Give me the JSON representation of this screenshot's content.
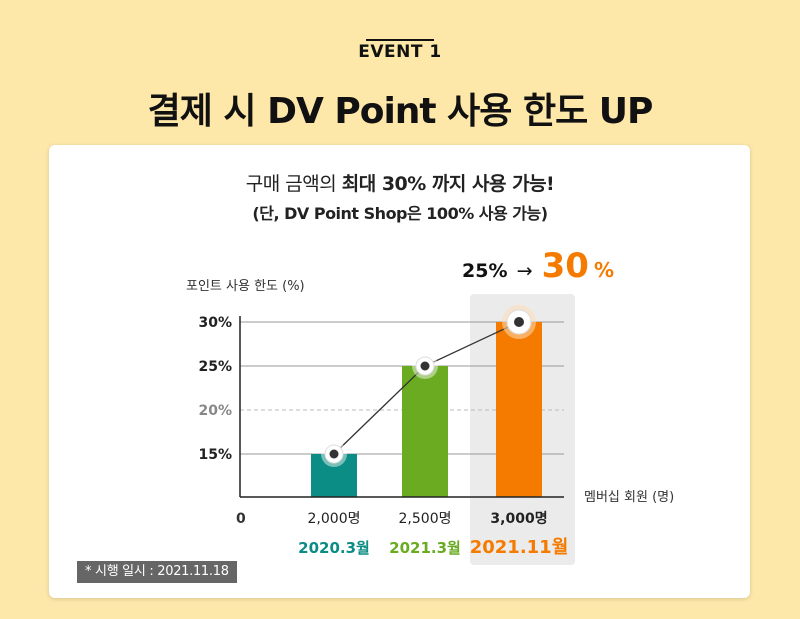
{
  "header": {
    "event_label": "EVENT 1",
    "headline": "결제 시 DV Point 사용 한도 UP"
  },
  "card": {
    "line1_prefix": "구매 금액의 ",
    "line1_bold": "최대 30% 까지 사용 가능!",
    "line2": "(단, DV Point Shop은 100% 사용 가능)",
    "note": "* 시행 일시 : 2021.11.18"
  },
  "highlight": {
    "from": "25%",
    "arrow": "→",
    "to_num": "30",
    "to_unit": "%"
  },
  "colors": {
    "teal": "#0b8c84",
    "green": "#6aab22",
    "orange": "#f47b00",
    "highlight_bg": "#ebebeb"
  },
  "chart_data": {
    "type": "bar",
    "ylabel": "포인트 사용 한도 (%)",
    "xlabel": "멤버십 회원 (명)",
    "origin_label": "0",
    "y_ticks": [
      "15%",
      "20%",
      "25%",
      "30%"
    ],
    "y_tick_values": [
      15,
      20,
      25,
      30
    ],
    "dashed_tick": 20,
    "ylim": [
      10,
      30
    ],
    "categories": [
      "2,000명",
      "2,500명",
      "3,000명"
    ],
    "dates": [
      "2020.3월",
      "2021.3월",
      "2021.11월"
    ],
    "values": [
      15,
      25,
      30
    ],
    "bar_colors": [
      "#0b8c84",
      "#6aab22",
      "#f47b00"
    ],
    "line_connecting_tops": true
  }
}
